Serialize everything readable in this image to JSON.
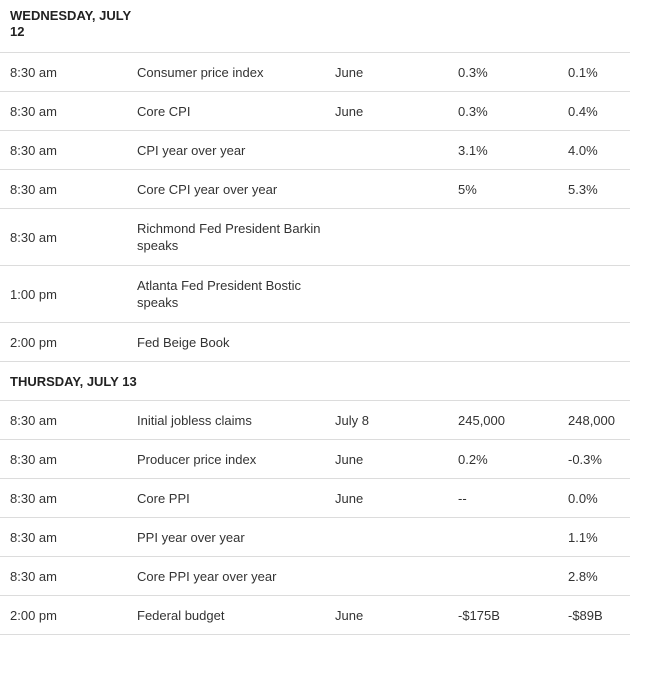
{
  "days": [
    {
      "label": "WEDNESDAY, JULY 12",
      "rows": [
        {
          "time": "8:30 am",
          "event": "Consumer price index",
          "period": "June",
          "forecast": "0.3%",
          "previous": "0.1%"
        },
        {
          "time": "8:30 am",
          "event": "Core CPI",
          "period": "June",
          "forecast": "0.3%",
          "previous": "0.4%"
        },
        {
          "time": "8:30 am",
          "event": "CPI year over year",
          "period": "",
          "forecast": "3.1%",
          "previous": "4.0%"
        },
        {
          "time": "8:30 am",
          "event": "Core CPI year over year",
          "period": "",
          "forecast": "5%",
          "previous": "5.3%"
        },
        {
          "time": "8:30 am",
          "event": "Richmond Fed President Barkin speaks",
          "period": "",
          "forecast": "",
          "previous": ""
        },
        {
          "time": "1:00 pm",
          "event": "Atlanta Fed President Bostic speaks",
          "period": "",
          "forecast": "",
          "previous": ""
        },
        {
          "time": "2:00 pm",
          "event": "Fed Beige Book",
          "period": "",
          "forecast": "",
          "previous": ""
        }
      ]
    },
    {
      "label": "THURSDAY, JULY 13",
      "rows": [
        {
          "time": "8:30 am",
          "event": "Initial jobless claims",
          "period": "July 8",
          "forecast": "245,000",
          "previous": "248,000"
        },
        {
          "time": "8:30 am",
          "event": "Producer price index",
          "period": "June",
          "forecast": "0.2%",
          "previous": "-0.3%"
        },
        {
          "time": "8:30 am",
          "event": "Core PPI",
          "period": "June",
          "forecast": "--",
          "previous": "0.0%"
        },
        {
          "time": "8:30 am",
          "event": "PPI year over year",
          "period": "",
          "forecast": "",
          "previous": "1.1%"
        },
        {
          "time": "8:30 am",
          "event": "Core PPI year over year",
          "period": "",
          "forecast": "",
          "previous": "2.8%"
        },
        {
          "time": "2:00 pm",
          "event": "Federal budget",
          "period": "June",
          "forecast": "-$175B",
          "previous": "-$89B"
        }
      ]
    }
  ]
}
